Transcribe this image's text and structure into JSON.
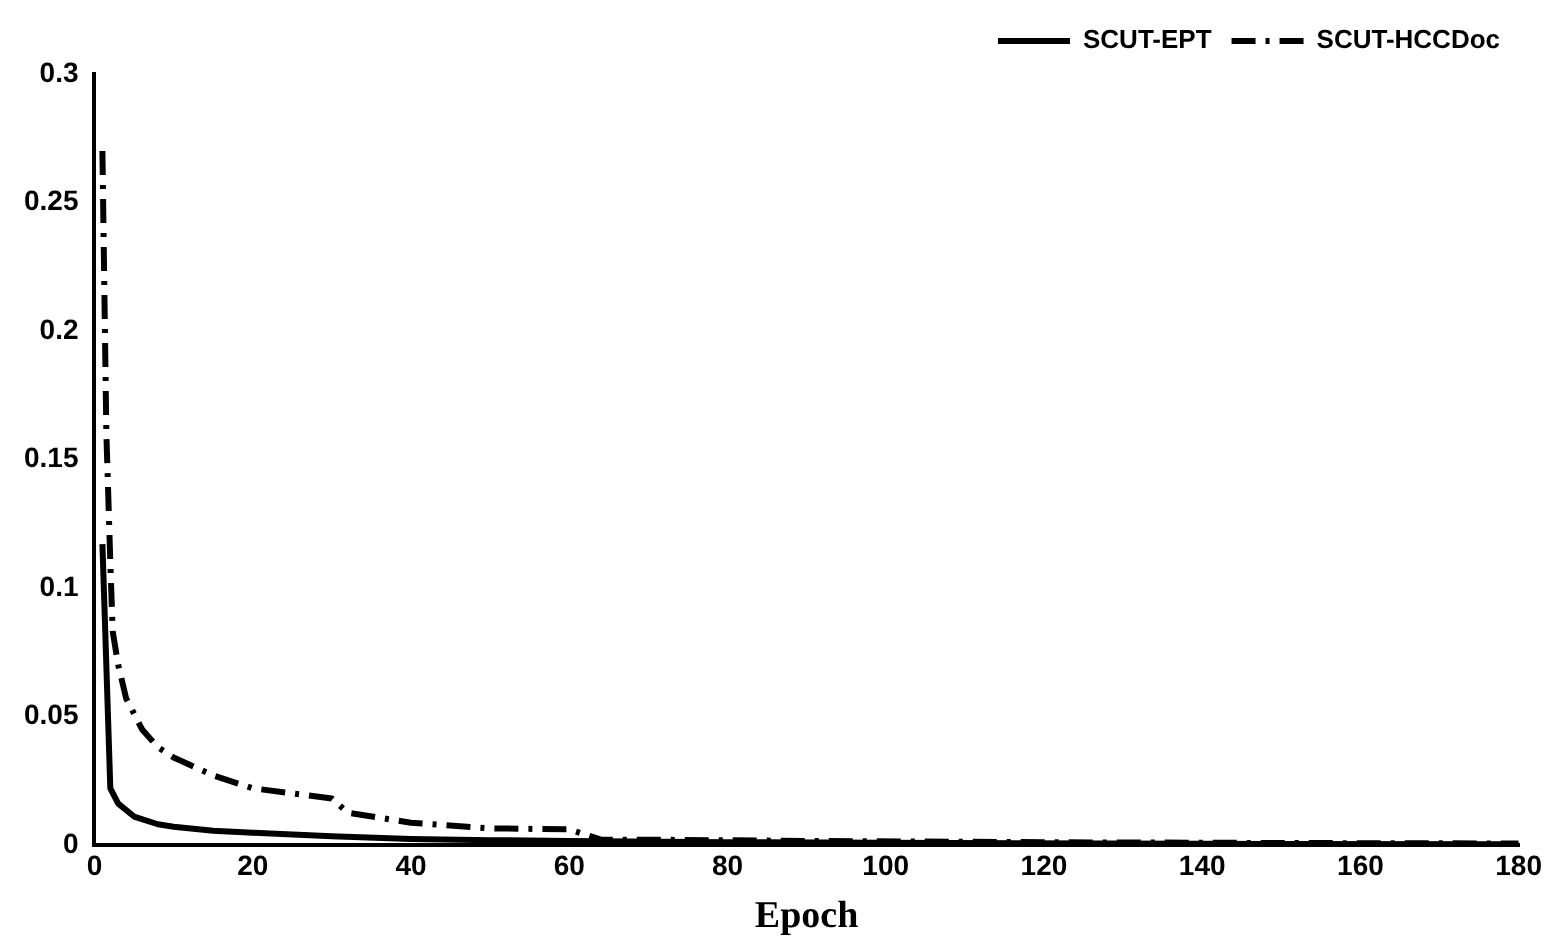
{
  "chart_data": {
    "type": "line",
    "xlabel": "Epoch",
    "xlim": [
      0,
      180
    ],
    "xticks": [
      0,
      20,
      40,
      60,
      80,
      100,
      120,
      140,
      160,
      180
    ],
    "ylim": [
      0,
      0.3
    ],
    "yticks": [
      0,
      0.05,
      0.1,
      0.15,
      0.2,
      0.25,
      0.3
    ],
    "grid": false,
    "legend": "top right",
    "marker": "none",
    "series": [
      {
        "name": "SCUT-EPT",
        "color": "#000000",
        "line_style": "solid",
        "x": [
          1,
          2,
          3,
          5,
          8,
          10,
          15,
          20,
          30,
          40,
          50,
          60,
          80,
          100,
          140,
          180
        ],
        "values": [
          0.117,
          0.022,
          0.016,
          0.011,
          0.008,
          0.007,
          0.0055,
          0.0047,
          0.0033,
          0.0023,
          0.0018,
          0.0015,
          0.001,
          0.0008,
          0.0004,
          0.0002
        ]
      },
      {
        "name": "SCUT-HCCDoc",
        "color": "#000000",
        "line_style": "dashed-dotted",
        "x": [
          1,
          1.5,
          2,
          2.3,
          3,
          4,
          6,
          8,
          10,
          15,
          20,
          25,
          30,
          32,
          40,
          50,
          60,
          62,
          64,
          70,
          90,
          120,
          150,
          180
        ],
        "values": [
          0.27,
          0.16,
          0.11,
          0.083,
          0.07,
          0.057,
          0.045,
          0.038,
          0.034,
          0.027,
          0.022,
          0.02,
          0.018,
          0.0125,
          0.0086,
          0.0064,
          0.006,
          0.004,
          0.002,
          0.002,
          0.0015,
          0.001,
          0.0007,
          0.0005
        ]
      }
    ]
  }
}
